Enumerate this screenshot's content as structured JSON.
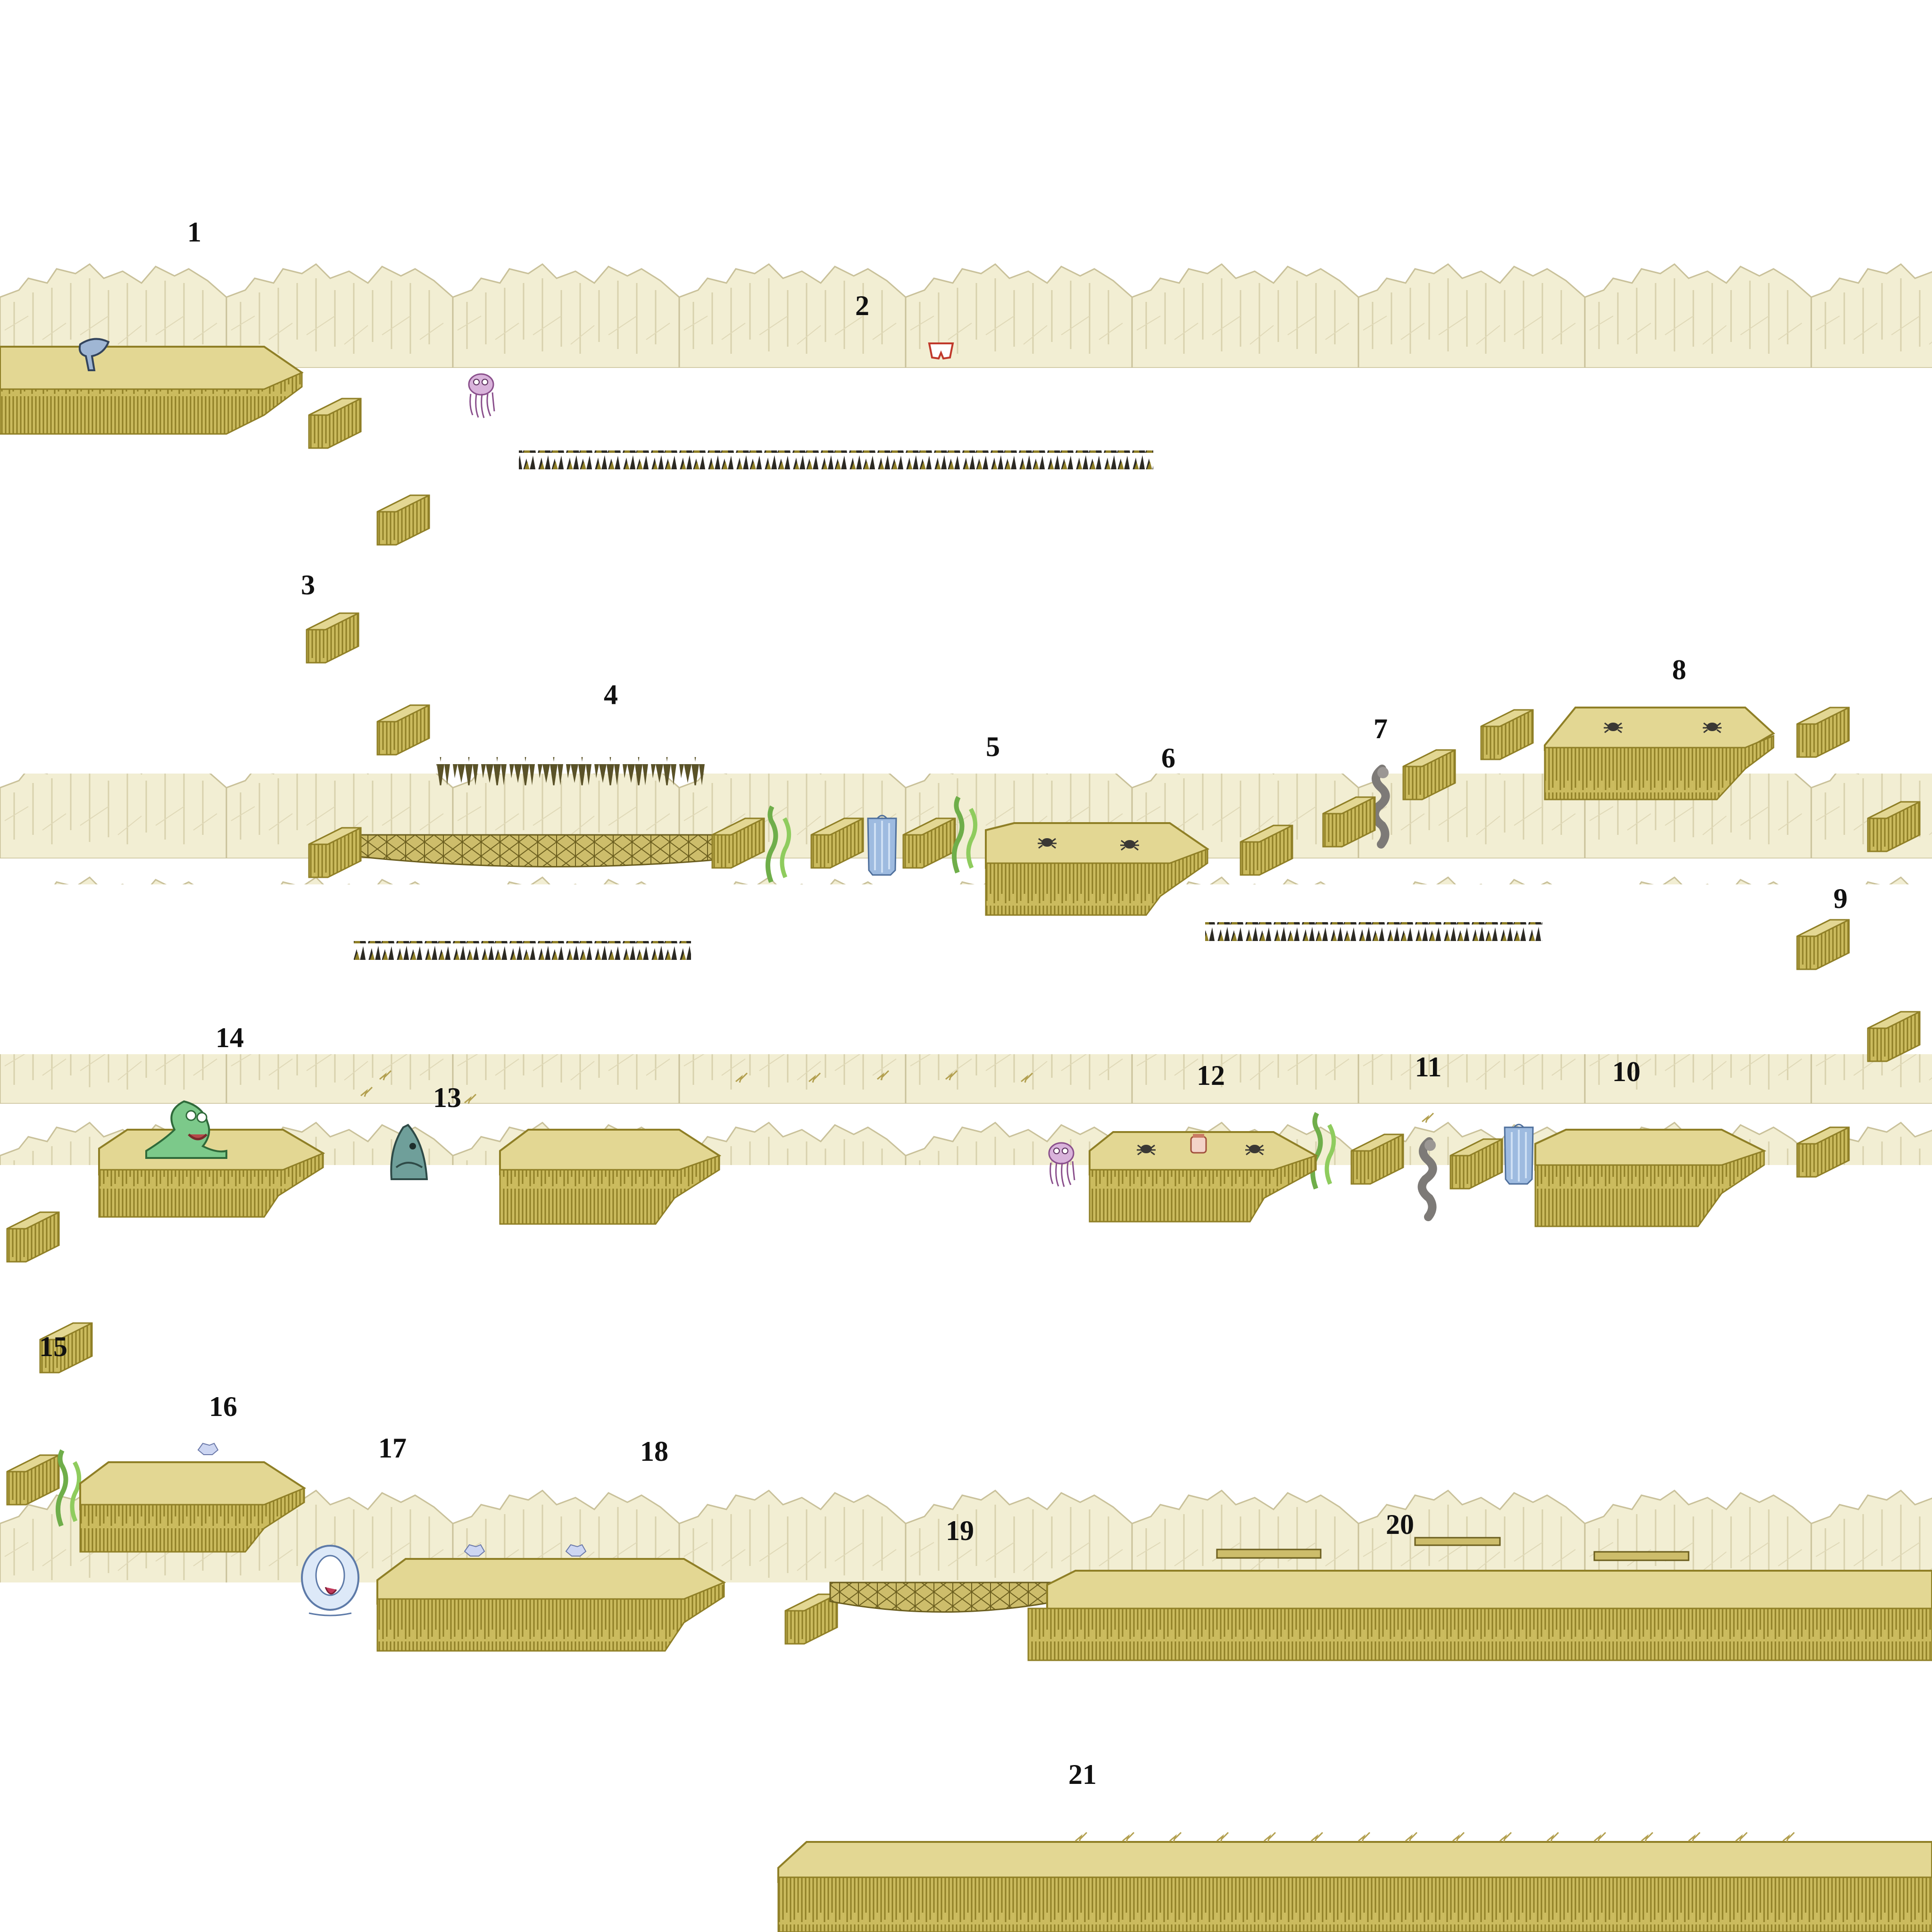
{
  "level": {
    "markers": [
      "1",
      "2",
      "3",
      "4",
      "5",
      "6",
      "7",
      "8",
      "9",
      "10",
      "11",
      "12",
      "13",
      "14",
      "15",
      "16",
      "17",
      "18",
      "19",
      "20",
      "21"
    ]
  },
  "palette": {
    "background": "#ffffff",
    "cliff_light": "#f2eed3",
    "cliff_line": "#c9c19a",
    "platform_top": "#e3d793",
    "platform_side": "#cbbb5e",
    "platform_dark": "#8f7f26",
    "spikes": "#2c2a24",
    "seaweed": "#9fcf6a",
    "waterfall": "#9ebbe0",
    "jellyfish": "#b784b8",
    "slime_monster": "#7cc98a",
    "shark": "#5f8f8b",
    "bubble_creature": "#b9cfee",
    "smoke": "#7d7a77"
  },
  "sprites": {
    "player": "hammer-robot-icon",
    "jellyfish": "jellyfish-icon",
    "slime_monster": "slime-monster-icon",
    "shark": "shark-icon",
    "bubble_creature": "bubble-creature-icon",
    "spider": "spider-icon",
    "crystal": "crystal-icon",
    "collectible_briefs": "briefs-icon",
    "jar": "jar-icon",
    "smoke_column": "smoke-column-icon",
    "waterfall": "waterfall-icon",
    "seaweed": "seaweed-icon",
    "spike_strip": "spike-strip-icon",
    "ceiling_spikes": "ceiling-spikes-icon",
    "arrow_marks": "arrow-marks-icon",
    "rope_bridge": "rope-bridge-icon",
    "cliff_band": "cliff-band-icon",
    "pillar": "pillar-icon"
  }
}
